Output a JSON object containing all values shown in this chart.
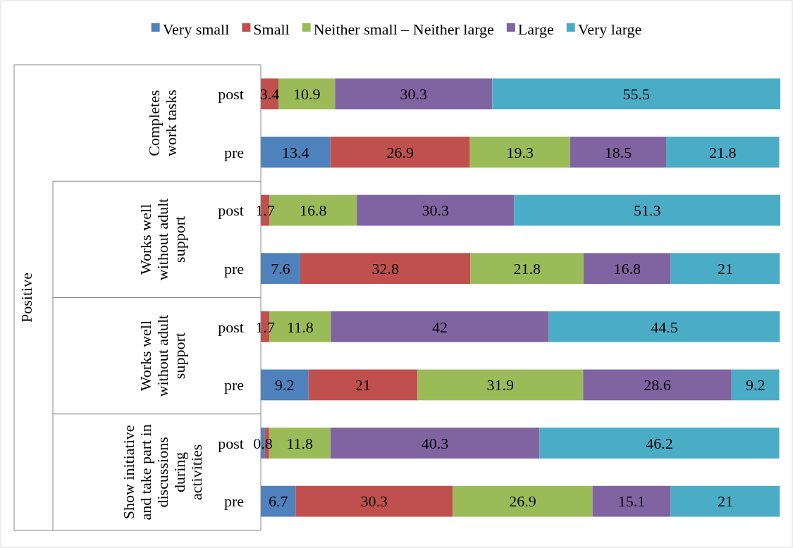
{
  "chart_data": {
    "type": "bar",
    "orientation": "horizontal",
    "stacked": true,
    "data_labels": true,
    "legend": "top",
    "xlim": [
      0,
      100.1
    ],
    "tick_labels": "y",
    "categories": [
      "post",
      "pre",
      "post",
      "pre",
      "post",
      "pre",
      "post",
      "pre"
    ],
    "series": [
      {
        "name": "Very small",
        "color": "#4f81bd",
        "values": [
          0,
          13.4,
          0,
          7.6,
          0,
          9.2,
          0.8,
          6.7
        ],
        "value_labels": [
          null,
          "13.4",
          null,
          "7.6",
          null,
          "9.2",
          "0.8",
          "6.7"
        ]
      },
      {
        "name": "Small",
        "color": "#c0504d",
        "values": [
          3.4,
          26.9,
          1.7,
          32.8,
          1.7,
          21,
          0.8,
          30.3
        ],
        "value_labels": [
          "3.4",
          "26.9",
          "1.7",
          "32.8",
          "1.7",
          "21",
          null,
          "30.3"
        ]
      },
      {
        "name": "Neither small – Neither large",
        "color": "#9bbb59",
        "values": [
          10.9,
          19.3,
          16.8,
          21.8,
          11.8,
          31.9,
          11.8,
          26.9
        ]
      },
      {
        "name": "Large",
        "color": "#8064a2",
        "values": [
          30.3,
          18.5,
          30.3,
          16.8,
          42,
          28.6,
          40.3,
          15.1
        ]
      },
      {
        "name": "Very large",
        "color": "#4bacc6",
        "values": [
          55.5,
          21.8,
          51.3,
          21,
          44.5,
          9.2,
          46.2,
          21
        ]
      }
    ],
    "annotations": [
      "Completes work tasks",
      "Works well without adult support",
      "Works well without adult support",
      "Show initiative and take part in discussions during activities",
      "Positive"
    ]
  }
}
